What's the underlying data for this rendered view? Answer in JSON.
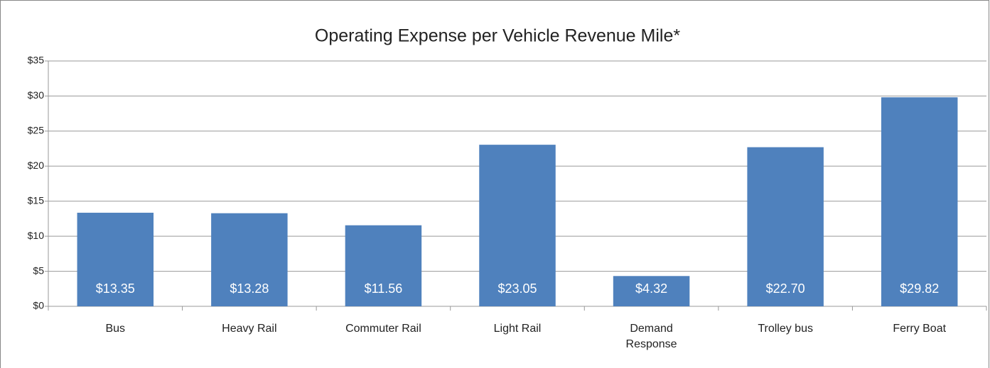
{
  "chart_data": {
    "type": "bar",
    "title": "Operating Expense per Vehicle Revenue Mile*",
    "categories": [
      "Bus",
      "Heavy Rail",
      "Commuter Rail",
      "Light Rail",
      "Demand Response",
      "Trolley bus",
      "Ferry Boat"
    ],
    "values": [
      13.35,
      13.28,
      11.56,
      23.05,
      4.32,
      22.7,
      29.82
    ],
    "value_labels": [
      "$13.35",
      "$13.28",
      "$11.56",
      "$23.05",
      "$4.32",
      "$22.70",
      "$29.82"
    ],
    "color": "#4f81bd",
    "ylim": [
      0,
      35
    ],
    "yticks": [
      {
        "value": 0,
        "label": "$0"
      },
      {
        "value": 5,
        "label": "$5"
      },
      {
        "value": 10,
        "label": "$10"
      },
      {
        "value": 15,
        "label": "$15"
      },
      {
        "value": 20,
        "label": "$20"
      },
      {
        "value": 25,
        "label": "$25"
      },
      {
        "value": 30,
        "label": "$30"
      },
      {
        "value": 35,
        "label": "$35"
      }
    ],
    "grid": true
  }
}
